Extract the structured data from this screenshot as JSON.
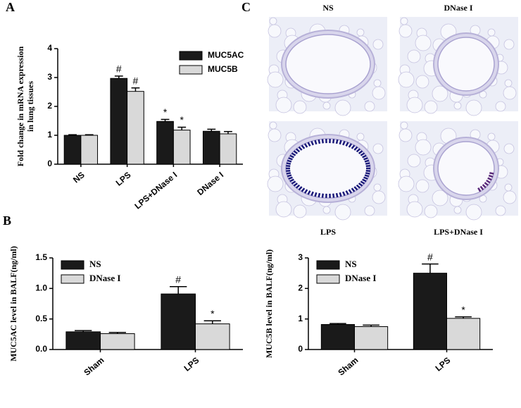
{
  "panel_labels": [
    "A",
    "B",
    "C"
  ],
  "images": [
    {
      "label": "NS"
    },
    {
      "label": "DNase I"
    },
    {
      "label": "LPS"
    },
    {
      "label": "LPS+DNase I"
    }
  ],
  "chart_data": [
    {
      "type": "bar",
      "ylabel": [
        "Fold change in mRNA expression",
        "in lung tissues"
      ],
      "categories": [
        "NS",
        "LPS",
        "LPS+DNase I",
        "DNase I"
      ],
      "series": [
        {
          "name": "MUC5AC",
          "color": "#1a1a1a",
          "values": [
            1,
            2.97,
            1.48,
            1.14
          ],
          "errors": [
            0.02,
            0.08,
            0.07,
            0.07
          ],
          "marks": [
            null,
            "#",
            "*",
            null
          ]
        },
        {
          "name": "MUC5B",
          "color": "#d9d9d9",
          "values": [
            1,
            2.52,
            1.18,
            1.05
          ],
          "errors": [
            0.02,
            0.12,
            0.1,
            0.08
          ],
          "marks": [
            null,
            "#",
            "*",
            null
          ]
        }
      ],
      "ylim": [
        0,
        4
      ],
      "yticks": [
        0,
        1,
        2,
        3,
        4
      ],
      "legend": "upper right"
    },
    {
      "type": "bar",
      "ylabel": "MUC5AC level in BALF(ng/ml)",
      "categories": [
        "Sham",
        "LPS"
      ],
      "series": [
        {
          "name": "NS",
          "color": "#1a1a1a",
          "values": [
            0.29,
            0.91
          ],
          "errors": [
            0.02,
            0.12
          ],
          "marks": [
            null,
            "#"
          ]
        },
        {
          "name": "DNase I",
          "color": "#d9d9d9",
          "values": [
            0.26,
            0.42
          ],
          "errors": [
            0.02,
            0.05
          ],
          "marks": [
            null,
            "*"
          ]
        }
      ],
      "ylim": [
        0,
        1.5
      ],
      "yticks": [
        {
          "value": 0,
          "label": "0.0"
        },
        0.5,
        {
          "value": 1,
          "label": "1.0"
        },
        1.5
      ],
      "legend": "upper left"
    },
    {
      "type": "bar",
      "ylabel": "MUC5B level in BALF(ng/ml)",
      "categories": [
        "Sham",
        "LPS"
      ],
      "series": [
        {
          "name": "NS",
          "color": "#1a1a1a",
          "values": [
            0.82,
            2.5
          ],
          "errors": [
            0.03,
            0.3
          ],
          "marks": [
            null,
            "#"
          ]
        },
        {
          "name": "DNase I",
          "color": "#d9d9d9",
          "values": [
            0.75,
            1.02
          ],
          "errors": [
            0.05,
            0.05
          ],
          "marks": [
            null,
            "*"
          ]
        }
      ],
      "ylim": [
        0,
        3
      ],
      "yticks": [
        0,
        1,
        2,
        3
      ],
      "legend": "upper left"
    }
  ]
}
